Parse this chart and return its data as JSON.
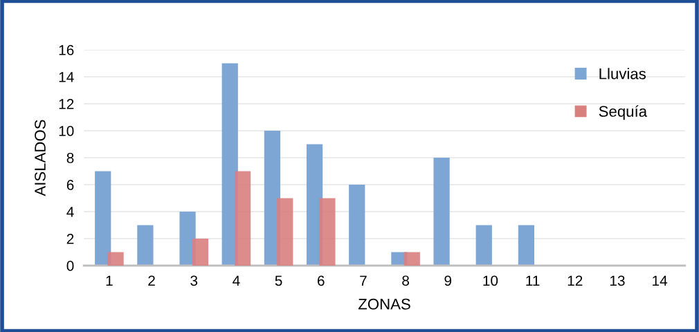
{
  "chart_data": {
    "type": "bar",
    "xlabel": "ZONAS",
    "ylabel": "AISLADOS",
    "categories": [
      "1",
      "2",
      "3",
      "4",
      "5",
      "6",
      "7",
      "8",
      "9",
      "10",
      "11",
      "12",
      "13",
      "14"
    ],
    "series": [
      {
        "name": "Lluvias",
        "color": "#7ea6d4",
        "values": [
          7,
          3,
          4,
          15,
          10,
          9,
          6,
          1,
          8,
          3,
          3,
          0,
          0,
          0
        ]
      },
      {
        "name": "Sequía",
        "color": "#d9807f",
        "values": [
          1,
          0,
          2,
          7,
          5,
          5,
          0,
          1,
          0,
          0,
          0,
          0,
          0,
          0
        ]
      }
    ],
    "ylim": [
      0,
      16
    ],
    "yticks": [
      0,
      2,
      4,
      6,
      8,
      10,
      12,
      14,
      16
    ],
    "grid": "y",
    "legend": "top right"
  }
}
